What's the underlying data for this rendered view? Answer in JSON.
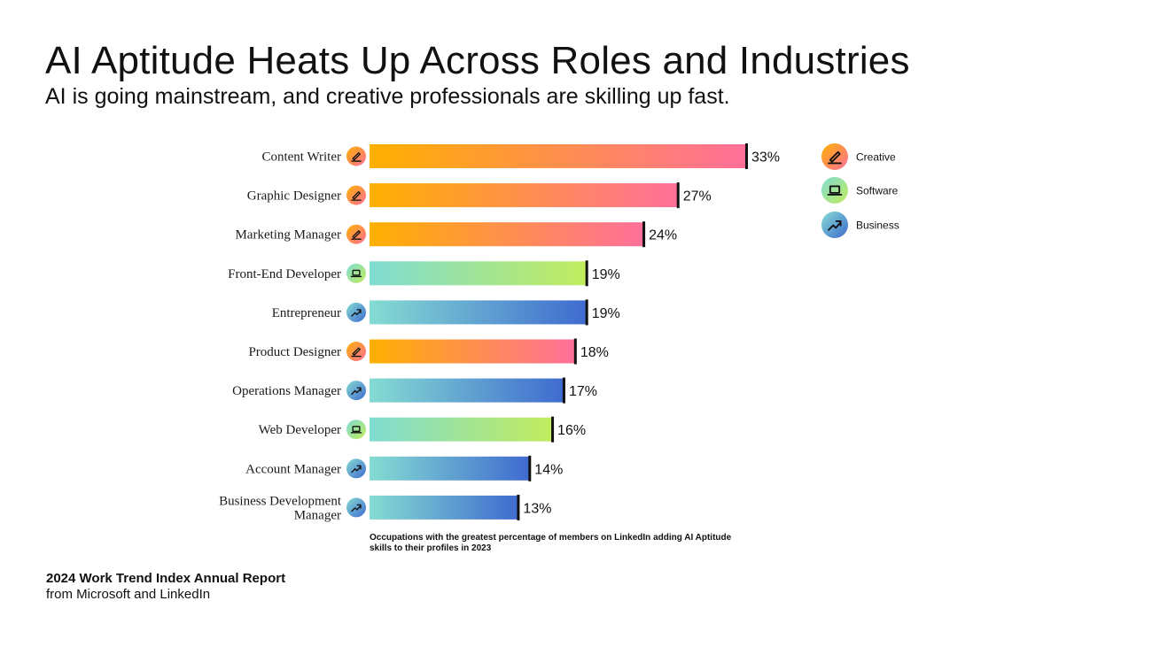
{
  "header": {
    "title": "AI Aptitude Heats Up Across Roles and Industries",
    "subtitle": "AI is going mainstream, and creative professionals are skilling up fast."
  },
  "footer": {
    "title": "2024 Work Trend Index Annual Report",
    "subtitle": "from Microsoft and LinkedIn"
  },
  "chart_data": {
    "type": "bar",
    "orientation": "horizontal",
    "unit": "%",
    "categories": [
      [
        "Content Writer"
      ],
      [
        "Graphic Designer"
      ],
      [
        "Marketing Manager"
      ],
      [
        "Front-End Developer"
      ],
      [
        "Entrepreneur"
      ],
      [
        "Product Designer"
      ],
      [
        "Operations Manager"
      ],
      [
        "Web Developer"
      ],
      [
        "Account Manager"
      ],
      [
        "Business Development",
        "Manager"
      ]
    ],
    "groups": [
      "creative",
      "creative",
      "creative",
      "software",
      "business",
      "creative",
      "business",
      "software",
      "business",
      "business"
    ],
    "values": [
      33,
      27,
      24,
      19,
      19,
      18,
      17,
      16,
      14,
      13
    ],
    "value_labels": [
      "33%",
      "27%",
      "24%",
      "19%",
      "19%",
      "18%",
      "17%",
      "16%",
      "14%",
      "13%"
    ],
    "xlim": [
      0,
      33
    ],
    "grid": false,
    "legend_position": "top-right",
    "legend": [
      {
        "key": "creative",
        "label": "Creative",
        "icon": "pencil-icon"
      },
      {
        "key": "software",
        "label": "Software",
        "icon": "laptop-icon"
      },
      {
        "key": "business",
        "label": "Business",
        "icon": "trend-up-icon"
      }
    ],
    "palette": {
      "creative": {
        "start": "#FFB000",
        "end": "#FF6F9A"
      },
      "software": {
        "start": "#7FDCD2",
        "end": "#C2EC5E"
      },
      "business": {
        "start": "#85DCD2",
        "end": "#3F6BD0"
      },
      "marker": "#111111"
    },
    "note": [
      "Occupations with the greatest percentage of members on LinkedIn adding AI Aptitude",
      "skills to their profiles in 2023"
    ]
  }
}
